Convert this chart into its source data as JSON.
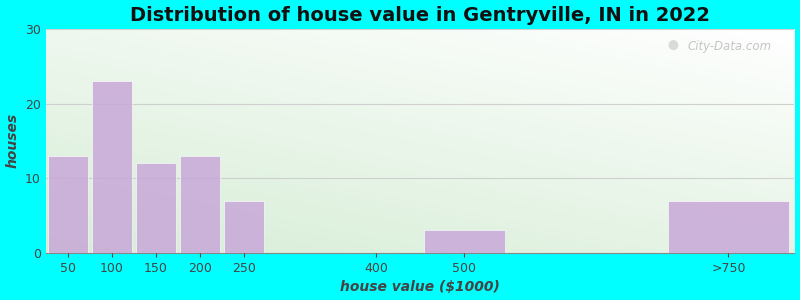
{
  "categories": [
    "50",
    "100",
    "150",
    "200",
    "250",
    "400",
    "500",
    ">750"
  ],
  "values": [
    13,
    23,
    12,
    13,
    7,
    0,
    3,
    7
  ],
  "x_positions": [
    50,
    100,
    150,
    200,
    250,
    400,
    500,
    800
  ],
  "bar_widths": [
    50,
    50,
    50,
    50,
    50,
    100,
    100,
    150
  ],
  "bar_color": "#C8A8D8",
  "bar_edgecolor": "white",
  "title": "Distribution of house value in Gentryville, IN in 2022",
  "xlabel": "house value ($1000)",
  "ylabel": "houses",
  "ylim": [
    0,
    30
  ],
  "yticks": [
    0,
    10,
    20,
    30
  ],
  "background_color": "#00FFFF",
  "plot_bg_color_top_right": "#FFFFFF",
  "plot_bg_color_bottom_left": "#D8EDD8",
  "title_fontsize": 14,
  "label_fontsize": 10,
  "tick_fontsize": 9,
  "watermark": "City-Data.com",
  "xmin": 25,
  "xmax": 875,
  "xtick_positions": [
    50,
    100,
    150,
    200,
    250,
    400,
    500,
    800
  ],
  "xtick_labels": [
    "50",
    "100",
    "150",
    "200",
    "250",
    "400",
    "500",
    ">750"
  ]
}
